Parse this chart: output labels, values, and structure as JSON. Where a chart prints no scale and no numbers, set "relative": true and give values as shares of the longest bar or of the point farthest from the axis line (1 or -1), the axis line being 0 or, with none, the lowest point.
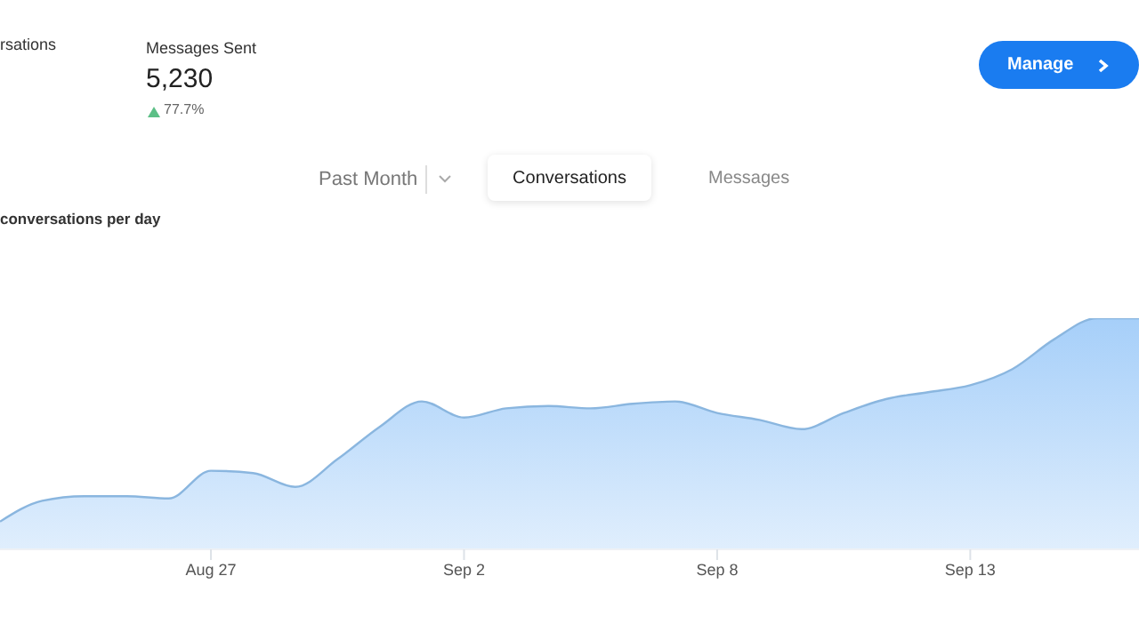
{
  "chart_data": {
    "type": "area",
    "title": "conversations per day",
    "relative": true,
    "categories": [
      null,
      null,
      null,
      null,
      null,
      "Aug 27",
      null,
      null,
      null,
      null,
      null,
      "Sep 2",
      null,
      null,
      null,
      null,
      null,
      "Sep 8",
      null,
      null,
      null,
      null,
      null,
      "Sep 13",
      null,
      null,
      null,
      null
    ],
    "series": [
      {
        "color": "#a6cff9",
        "values": [
          0.12,
          0.21,
          0.23,
          0.23,
          0.22,
          0.34,
          0.33,
          0.27,
          0.39,
          0.53,
          0.64,
          0.57,
          0.61,
          0.62,
          0.61,
          0.63,
          0.64,
          0.59,
          0.56,
          0.52,
          0.59,
          0.65,
          0.68,
          0.71,
          0.78,
          0.91,
          1.0,
          1.0
        ]
      }
    ],
    "annotations": [
      "rsations",
      "Messages Sent",
      "5,230",
      "77.7%",
      "Manage",
      "Past Month",
      "Conversations",
      "Messages"
    ]
  }
}
